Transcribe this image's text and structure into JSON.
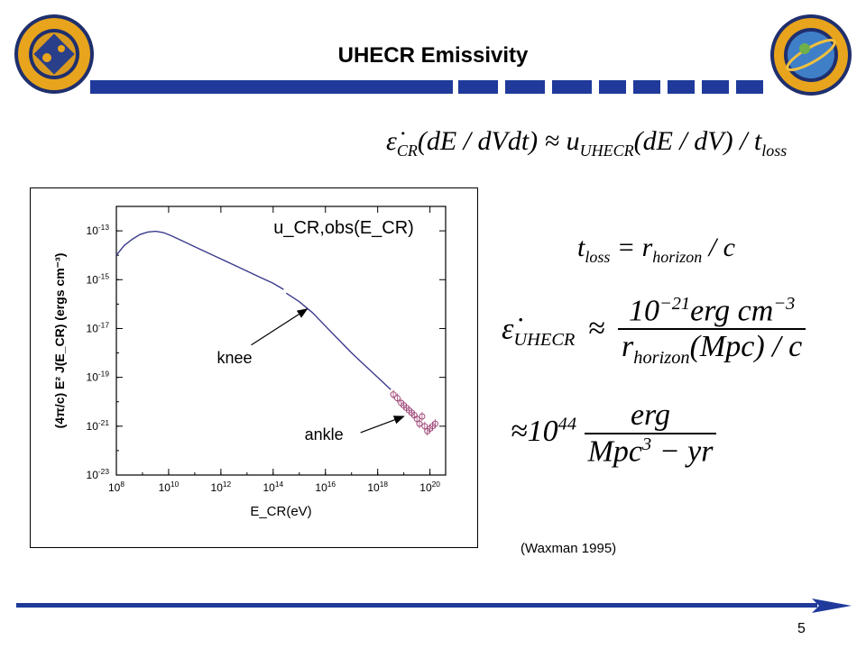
{
  "slide": {
    "title": "UHECR Emissivity",
    "page_number": "5",
    "citation": "(Waxman 1995)",
    "accent_color": "#1f3a9a",
    "left_logo": "naval-research-laboratory-seal",
    "right_logo": "space-science-division-emblem"
  },
  "equations": {
    "emissivity_def": {
      "lhs": "ε̇",
      "lhs_sub": "CR",
      "lhs_args": "(dE / dVdt) ≈ ",
      "u": "u",
      "u_sub": "UHECR",
      "u_args": "(dE / dV) / t",
      "t_sub": "loss"
    },
    "tloss": {
      "t": "t",
      "t_sub": "loss",
      "eq": " = r",
      "r_sub": "horizon",
      "tail": " / c"
    },
    "uhecr": {
      "lhs": "ε̇",
      "lhs_sub": "UHECR",
      "approx": "≈",
      "num_base": "10",
      "num_exp": "−21",
      "num_tail": "erg cm",
      "num_tail_exp": "−3",
      "den": "r",
      "den_sub": "horizon",
      "den_tail": "(Mpc) / c"
    },
    "result": {
      "approx": "≈",
      "base": "10",
      "exp": "44",
      "num": "erg",
      "den": "Mpc",
      "den_exp": "3",
      "den_tail": " − yr"
    }
  },
  "chart_data": {
    "type": "line",
    "title": "u_CR,obs(E_CR)",
    "xlabel": "E_CR(eV)",
    "ylabel": "(4π/c) E² J(E_CR) (ergs cm⁻³)",
    "x_scale": "log",
    "y_scale": "log",
    "xlim_exp": [
      8,
      20.6
    ],
    "ylim_exp": [
      -23,
      -12
    ],
    "x_ticks": [
      "10^8",
      "10^10",
      "10^12",
      "10^14",
      "10^16",
      "10^18",
      "10^20"
    ],
    "y_ticks": [
      "10^-13",
      "10^-15",
      "10^-17",
      "10^-19",
      "10^-21",
      "10^-23"
    ],
    "series": [
      {
        "style": "line",
        "color": "#3b3b8c",
        "log_x": [
          8.0,
          8.3,
          8.6,
          8.9,
          9.2,
          9.5,
          9.8,
          10.1,
          10.5,
          11.0,
          11.5,
          12.0,
          12.5,
          13.0,
          13.5,
          14.0,
          14.4
        ],
        "log_y": [
          -14.0,
          -13.6,
          -13.35,
          -13.15,
          -13.05,
          -13.02,
          -13.07,
          -13.2,
          -13.4,
          -13.65,
          -13.9,
          -14.15,
          -14.4,
          -14.65,
          -14.9,
          -15.15,
          -15.4
        ]
      },
      {
        "style": "line",
        "color": "#3b3b8c",
        "log_x": [
          14.5,
          15.0,
          15.5,
          16.0,
          16.5,
          17.0,
          17.5,
          18.0,
          18.5
        ],
        "log_y": [
          -15.55,
          -15.9,
          -16.35,
          -16.9,
          -17.45,
          -18.0,
          -18.5,
          -19.0,
          -19.5
        ]
      },
      {
        "style": "points",
        "color": "#a04a7a",
        "log_x": [
          18.6,
          18.75,
          18.9,
          19.0,
          19.1,
          19.2,
          19.3,
          19.4,
          19.5,
          19.6,
          19.7,
          19.8,
          19.9,
          20.0,
          20.1,
          20.2
        ],
        "log_y": [
          -19.7,
          -19.85,
          -20.05,
          -20.15,
          -20.25,
          -20.35,
          -20.45,
          -20.55,
          -20.7,
          -20.9,
          -20.6,
          -21.0,
          -21.2,
          -21.1,
          -21.0,
          -20.9
        ]
      }
    ],
    "annotations": [
      {
        "text": "knee",
        "target_log_x": 15.3,
        "target_log_y": -16.2
      },
      {
        "text": "ankle",
        "target_log_x": 19.0,
        "target_log_y": -20.6
      }
    ]
  }
}
